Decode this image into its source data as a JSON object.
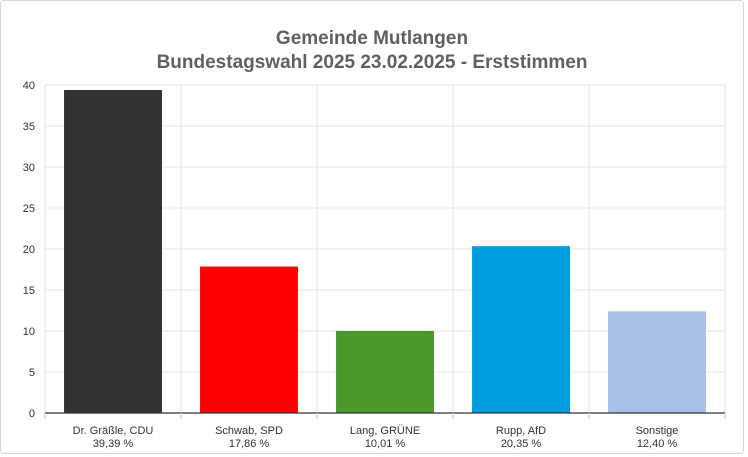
{
  "chart_data": {
    "type": "bar",
    "title_line1": "Gemeinde Mutlangen",
    "title_line2": "Bundestagswahl 2025 23.02.2025  - Erststimmen",
    "categories": [
      "Dr. Gräßle, CDU",
      "Schwab, SPD",
      "Lang, GRÜNE",
      "Rupp, AfD",
      "Sonstige"
    ],
    "value_labels": [
      "39,39 %",
      "17,86 %",
      "10,01 %",
      "20,35 %",
      "12,40 %"
    ],
    "values": [
      39.39,
      17.86,
      10.01,
      20.35,
      12.4
    ],
    "colors": [
      "#323232",
      "#ff0000",
      "#4a982a",
      "#009de0",
      "#aabfe6"
    ],
    "yticks": [
      0,
      5,
      10,
      15,
      20,
      25,
      30,
      35,
      40
    ],
    "ylim": [
      0,
      40
    ],
    "grid": true,
    "legend": "none"
  }
}
